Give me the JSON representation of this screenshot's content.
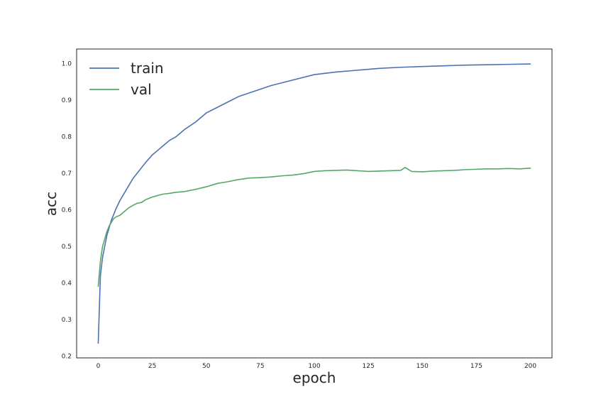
{
  "chart_data": {
    "type": "line",
    "title": "",
    "xlabel": "epoch",
    "ylabel": "acc",
    "xlim": [
      -10,
      210
    ],
    "ylim": [
      0.195,
      1.04
    ],
    "xticks": [
      0,
      25,
      50,
      75,
      100,
      125,
      150,
      175,
      200
    ],
    "yticks": [
      0.2,
      0.3,
      0.4,
      0.5,
      0.6,
      0.7,
      0.8,
      0.9,
      1.0
    ],
    "grid": false,
    "legend_position": "top-left",
    "series": [
      {
        "name": "train",
        "color": "#4c72b0",
        "x": [
          0,
          1,
          2,
          3,
          4,
          5,
          6,
          7,
          8,
          10,
          12,
          14,
          16,
          18,
          20,
          22,
          25,
          28,
          30,
          33,
          36,
          40,
          45,
          50,
          55,
          60,
          65,
          70,
          75,
          80,
          90,
          100,
          110,
          120,
          130,
          140,
          150,
          160,
          170,
          180,
          190,
          200
        ],
        "y": [
          0.235,
          0.42,
          0.47,
          0.5,
          0.53,
          0.55,
          0.57,
          0.585,
          0.6,
          0.625,
          0.645,
          0.665,
          0.685,
          0.7,
          0.715,
          0.73,
          0.75,
          0.765,
          0.775,
          0.79,
          0.8,
          0.82,
          0.84,
          0.865,
          0.88,
          0.895,
          0.91,
          0.92,
          0.93,
          0.94,
          0.955,
          0.97,
          0.977,
          0.982,
          0.987,
          0.99,
          0.992,
          0.994,
          0.996,
          0.997,
          0.998,
          0.999
        ]
      },
      {
        "name": "val",
        "color": "#55a868",
        "x": [
          0,
          1,
          2,
          3,
          4,
          5,
          6,
          7,
          8,
          10,
          12,
          14,
          16,
          18,
          20,
          22,
          25,
          28,
          30,
          33,
          36,
          40,
          45,
          50,
          55,
          60,
          65,
          70,
          75,
          80,
          85,
          90,
          95,
          100,
          105,
          110,
          115,
          120,
          125,
          130,
          135,
          140,
          142,
          145,
          150,
          155,
          160,
          165,
          170,
          175,
          180,
          185,
          190,
          195,
          200
        ],
        "y": [
          0.39,
          0.46,
          0.5,
          0.52,
          0.54,
          0.555,
          0.565,
          0.575,
          0.58,
          0.585,
          0.595,
          0.605,
          0.612,
          0.618,
          0.62,
          0.628,
          0.635,
          0.64,
          0.643,
          0.645,
          0.648,
          0.65,
          0.656,
          0.663,
          0.672,
          0.677,
          0.683,
          0.687,
          0.688,
          0.69,
          0.693,
          0.695,
          0.699,
          0.705,
          0.707,
          0.708,
          0.709,
          0.707,
          0.705,
          0.706,
          0.707,
          0.708,
          0.716,
          0.705,
          0.704,
          0.706,
          0.707,
          0.708,
          0.71,
          0.711,
          0.712,
          0.712,
          0.713,
          0.712,
          0.714
        ]
      }
    ]
  }
}
